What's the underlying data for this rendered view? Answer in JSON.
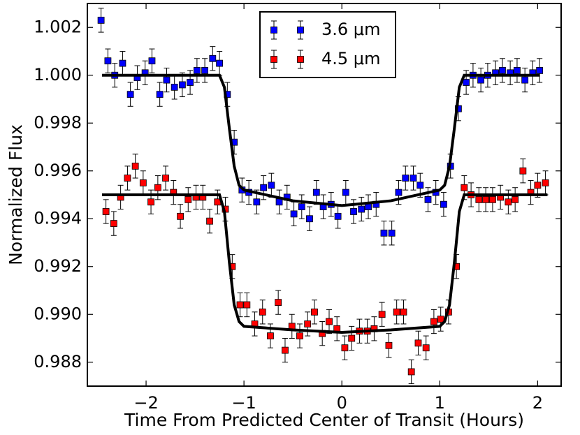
{
  "chart_data": {
    "type": "scatter",
    "xlabel": "Time From Predicted Center of Transit (Hours)",
    "ylabel": "Normalized Flux",
    "xlim": [
      -2.6,
      2.24
    ],
    "ylim": [
      0.987,
      1.003
    ],
    "xticks": [
      {
        "value": -2,
        "label": "−2"
      },
      {
        "value": -1,
        "label": "−1"
      },
      0,
      1,
      2
    ],
    "yticks": [
      0.988,
      {
        "value": 0.99,
        "label": "0.990"
      },
      0.992,
      0.994,
      0.996,
      0.998,
      {
        "value": 1,
        "label": "1.000"
      },
      1.002
    ],
    "legend": "upper center",
    "series": [
      {
        "name": "3.6 μm",
        "color": "#0000ff",
        "error": 0.0005,
        "x": [
          -2.46,
          -2.39,
          -2.32,
          -2.24,
          -2.16,
          -2.09,
          -2.01,
          -1.94,
          -1.86,
          -1.79,
          -1.71,
          -1.63,
          -1.55,
          -1.48,
          -1.4,
          -1.32,
          -1.25,
          -1.17,
          -1.1,
          -1.02,
          -0.95,
          -0.87,
          -0.8,
          -0.72,
          -0.64,
          -0.56,
          -0.49,
          -0.41,
          -0.33,
          -0.26,
          -0.19,
          -0.11,
          -0.04,
          0.04,
          0.12,
          0.2,
          0.27,
          0.35,
          0.43,
          0.51,
          0.58,
          0.65,
          0.73,
          0.8,
          0.88,
          0.96,
          1.04,
          1.11,
          1.19,
          1.27,
          1.34,
          1.42,
          1.49,
          1.57,
          1.64,
          1.72,
          1.79,
          1.87,
          1.95,
          2.02
        ],
        "values": [
          1.0023,
          1.0006,
          1.0,
          1.0005,
          0.9992,
          0.9999,
          1.0001,
          1.0006,
          0.9992,
          0.9998,
          0.9995,
          0.9996,
          0.9997,
          1.0002,
          1.0002,
          1.0007,
          1.0005,
          0.9992,
          0.9972,
          0.9952,
          0.9951,
          0.9947,
          0.9953,
          0.9954,
          0.9947,
          0.9949,
          0.9942,
          0.9945,
          0.994,
          0.9951,
          0.9945,
          0.9946,
          0.9941,
          0.9951,
          0.9943,
          0.9944,
          0.9945,
          0.9946,
          0.9934,
          0.9934,
          0.9951,
          0.9957,
          0.9957,
          0.9954,
          0.9948,
          0.9951,
          0.9946,
          0.9962,
          0.9986,
          0.9997,
          1.0,
          0.9998,
          1.0,
          1.0001,
          1.0002,
          1.0001,
          1.0002,
          0.9998,
          1.0001,
          1.0002
        ]
      },
      {
        "name": "4.5 μm",
        "color": "#ff0000",
        "error": 0.0005,
        "x": [
          -2.41,
          -2.33,
          -2.26,
          -2.19,
          -2.11,
          -2.03,
          -1.95,
          -1.88,
          -1.8,
          -1.72,
          -1.65,
          -1.57,
          -1.49,
          -1.42,
          -1.35,
          -1.27,
          -1.19,
          -1.12,
          -1.04,
          -0.97,
          -0.89,
          -0.81,
          -0.73,
          -0.65,
          -0.58,
          -0.51,
          -0.43,
          -0.35,
          -0.28,
          -0.2,
          -0.13,
          -0.05,
          0.03,
          0.1,
          0.18,
          0.26,
          0.33,
          0.41,
          0.48,
          0.56,
          0.63,
          0.71,
          0.78,
          0.86,
          0.94,
          1.01,
          1.09,
          1.17,
          1.25,
          1.32,
          1.4,
          1.47,
          1.54,
          1.62,
          1.7,
          1.77,
          1.85,
          1.93,
          2.0,
          2.08
        ],
        "values": [
          0.9943,
          0.9938,
          0.9949,
          0.9957,
          0.9962,
          0.9955,
          0.9947,
          0.9953,
          0.9957,
          0.9951,
          0.9941,
          0.9948,
          0.9949,
          0.9949,
          0.9939,
          0.9947,
          0.9944,
          0.992,
          0.9904,
          0.9904,
          0.9896,
          0.9901,
          0.9891,
          0.9905,
          0.9885,
          0.9895,
          0.9891,
          0.9896,
          0.9901,
          0.9892,
          0.9897,
          0.9894,
          0.9886,
          0.989,
          0.9893,
          0.9893,
          0.9894,
          0.99,
          0.9887,
          0.9901,
          0.9901,
          0.9876,
          0.9888,
          0.9886,
          0.9897,
          0.9898,
          0.9901,
          0.992,
          0.9953,
          0.995,
          0.9948,
          0.9948,
          0.9948,
          0.9949,
          0.9947,
          0.9948,
          0.996,
          0.9951,
          0.9954,
          0.9955
        ]
      }
    ],
    "models": [
      {
        "color": "#000000",
        "x": [
          -2.45,
          -1.25,
          -1.2,
          -1.15,
          -1.1,
          -1.05,
          -1.0,
          -0.5,
          0,
          0.5,
          1.0,
          1.05,
          1.1,
          1.15,
          1.2,
          1.25,
          2.02
        ],
        "y": [
          1.0,
          1.0,
          0.9995,
          0.9978,
          0.9962,
          0.9954,
          0.9952,
          0.99475,
          0.99455,
          0.99475,
          0.9952,
          0.9954,
          0.9962,
          0.9978,
          0.9995,
          1.0,
          1.0
        ]
      },
      {
        "color": "#000000",
        "x": [
          -2.45,
          -1.25,
          -1.2,
          -1.15,
          -1.1,
          -1.05,
          -1.0,
          -0.5,
          0,
          0.5,
          1.0,
          1.05,
          1.1,
          1.15,
          1.2,
          1.25,
          2.1
        ],
        "y": [
          0.995,
          0.995,
          0.9943,
          0.9922,
          0.9904,
          0.9897,
          0.9895,
          0.98935,
          0.98925,
          0.98935,
          0.9895,
          0.9897,
          0.9904,
          0.9922,
          0.9943,
          0.995,
          0.995
        ]
      }
    ]
  }
}
